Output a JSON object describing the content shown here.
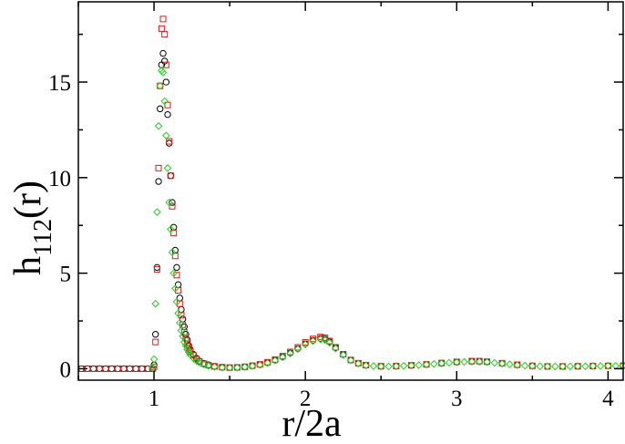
{
  "chart_data": {
    "type": "scatter",
    "xlabel": "r/2a",
    "ylabel": {
      "base": "h",
      "subscript": "112",
      "suffix": "(r)"
    },
    "xlim": [
      0.5,
      4.1
    ],
    "ylim": [
      -0.6,
      19.2
    ],
    "x_ticks": [
      1,
      2,
      3,
      4
    ],
    "y_ticks": [
      0,
      5,
      10,
      15
    ],
    "x_minor_step": 0.5,
    "y_minor_step": 2.5,
    "grid": false,
    "legend": "none",
    "series": [
      {
        "marker": "circle",
        "color": "#000000",
        "points": [
          [
            0.52,
            0
          ],
          [
            0.56,
            0
          ],
          [
            0.6,
            0
          ],
          [
            0.64,
            0
          ],
          [
            0.68,
            0
          ],
          [
            0.72,
            0
          ],
          [
            0.76,
            0
          ],
          [
            0.8,
            0
          ],
          [
            0.84,
            0
          ],
          [
            0.88,
            0
          ],
          [
            0.92,
            0
          ],
          [
            0.96,
            0
          ],
          [
            0.99,
            0
          ],
          [
            1.0,
            0.2
          ],
          [
            1.01,
            1.8
          ],
          [
            1.02,
            5.3
          ],
          [
            1.03,
            9.8
          ],
          [
            1.04,
            13.6
          ],
          [
            1.05,
            15.9
          ],
          [
            1.06,
            16.5
          ],
          [
            1.07,
            16.1
          ],
          [
            1.08,
            15.0
          ],
          [
            1.09,
            13.3
          ],
          [
            1.1,
            11.8
          ],
          [
            1.11,
            10.1
          ],
          [
            1.12,
            8.7
          ],
          [
            1.13,
            7.4
          ],
          [
            1.14,
            6.2
          ],
          [
            1.15,
            5.3
          ],
          [
            1.16,
            4.4
          ],
          [
            1.17,
            3.7
          ],
          [
            1.18,
            3.1
          ],
          [
            1.19,
            2.6
          ],
          [
            1.2,
            2.2
          ],
          [
            1.21,
            1.8
          ],
          [
            1.22,
            1.5
          ],
          [
            1.23,
            1.2
          ],
          [
            1.24,
            1.0
          ],
          [
            1.26,
            0.75
          ],
          [
            1.28,
            0.55
          ],
          [
            1.3,
            0.4
          ],
          [
            1.33,
            0.28
          ],
          [
            1.36,
            0.2
          ],
          [
            1.4,
            0.13
          ],
          [
            1.45,
            0.08
          ],
          [
            1.5,
            0.06
          ],
          [
            1.55,
            0.07
          ],
          [
            1.6,
            0.1
          ],
          [
            1.65,
            0.15
          ],
          [
            1.7,
            0.22
          ],
          [
            1.75,
            0.32
          ],
          [
            1.8,
            0.45
          ],
          [
            1.85,
            0.62
          ],
          [
            1.9,
            0.82
          ],
          [
            1.95,
            1.05
          ],
          [
            2.0,
            1.3
          ],
          [
            2.05,
            1.48
          ],
          [
            2.1,
            1.58
          ],
          [
            2.13,
            1.55
          ],
          [
            2.16,
            1.4
          ],
          [
            2.2,
            1.1
          ],
          [
            2.25,
            0.75
          ],
          [
            2.3,
            0.45
          ],
          [
            2.35,
            0.28
          ],
          [
            2.4,
            0.18
          ],
          [
            2.5,
            0.13
          ],
          [
            2.6,
            0.14
          ],
          [
            2.7,
            0.17
          ],
          [
            2.8,
            0.22
          ],
          [
            2.9,
            0.28
          ],
          [
            3.0,
            0.34
          ],
          [
            3.1,
            0.38
          ],
          [
            3.15,
            0.38
          ],
          [
            3.2,
            0.36
          ],
          [
            3.3,
            0.28
          ],
          [
            3.4,
            0.2
          ],
          [
            3.5,
            0.15
          ],
          [
            3.6,
            0.12
          ],
          [
            3.7,
            0.12
          ],
          [
            3.8,
            0.13
          ],
          [
            3.9,
            0.14
          ],
          [
            4.0,
            0.15
          ],
          [
            4.1,
            0.16
          ]
        ]
      },
      {
        "marker": "square",
        "color": "#e01b1b",
        "points": [
          [
            0.52,
            0
          ],
          [
            0.56,
            0
          ],
          [
            0.6,
            0
          ],
          [
            0.64,
            0
          ],
          [
            0.68,
            0
          ],
          [
            0.72,
            0
          ],
          [
            0.76,
            0
          ],
          [
            0.8,
            0
          ],
          [
            0.84,
            0
          ],
          [
            0.88,
            0
          ],
          [
            0.92,
            0
          ],
          [
            0.96,
            0
          ],
          [
            0.99,
            0
          ],
          [
            1.0,
            0.1
          ],
          [
            1.01,
            1.4
          ],
          [
            1.02,
            5.2
          ],
          [
            1.03,
            10.5
          ],
          [
            1.04,
            14.8
          ],
          [
            1.05,
            17.8
          ],
          [
            1.06,
            18.3
          ],
          [
            1.07,
            17.5
          ],
          [
            1.08,
            15.9
          ],
          [
            1.09,
            13.8
          ],
          [
            1.1,
            11.9
          ],
          [
            1.11,
            10.1
          ],
          [
            1.12,
            8.5
          ],
          [
            1.13,
            7.1
          ],
          [
            1.14,
            5.9
          ],
          [
            1.15,
            4.9
          ],
          [
            1.16,
            4.1
          ],
          [
            1.17,
            3.4
          ],
          [
            1.18,
            2.8
          ],
          [
            1.19,
            2.3
          ],
          [
            1.2,
            1.9
          ],
          [
            1.21,
            1.6
          ],
          [
            1.22,
            1.3
          ],
          [
            1.23,
            1.1
          ],
          [
            1.24,
            0.9
          ],
          [
            1.26,
            0.7
          ],
          [
            1.28,
            0.5
          ],
          [
            1.3,
            0.38
          ],
          [
            1.33,
            0.26
          ],
          [
            1.36,
            0.18
          ],
          [
            1.4,
            0.12
          ],
          [
            1.45,
            0.08
          ],
          [
            1.5,
            0.06
          ],
          [
            1.55,
            0.07
          ],
          [
            1.6,
            0.1
          ],
          [
            1.65,
            0.16
          ],
          [
            1.7,
            0.23
          ],
          [
            1.75,
            0.34
          ],
          [
            1.8,
            0.48
          ],
          [
            1.85,
            0.66
          ],
          [
            1.9,
            0.88
          ],
          [
            1.95,
            1.12
          ],
          [
            2.0,
            1.38
          ],
          [
            2.05,
            1.56
          ],
          [
            2.1,
            1.66
          ],
          [
            2.13,
            1.62
          ],
          [
            2.16,
            1.45
          ],
          [
            2.2,
            1.12
          ],
          [
            2.25,
            0.76
          ],
          [
            2.3,
            0.46
          ],
          [
            2.35,
            0.29
          ],
          [
            2.4,
            0.19
          ],
          [
            2.5,
            0.13
          ],
          [
            2.6,
            0.14
          ],
          [
            2.7,
            0.18
          ],
          [
            2.8,
            0.23
          ],
          [
            2.9,
            0.3
          ],
          [
            3.0,
            0.36
          ],
          [
            3.1,
            0.4
          ],
          [
            3.15,
            0.4
          ],
          [
            3.2,
            0.37
          ],
          [
            3.3,
            0.29
          ],
          [
            3.4,
            0.21
          ],
          [
            3.5,
            0.15
          ],
          [
            3.6,
            0.12
          ],
          [
            3.7,
            0.12
          ],
          [
            3.8,
            0.13
          ],
          [
            3.9,
            0.14
          ],
          [
            4.0,
            0.15
          ],
          [
            4.1,
            0.16
          ]
        ]
      },
      {
        "marker": "diamond",
        "color": "#22d022",
        "points": [
          [
            0.99,
            0.05
          ],
          [
            1.0,
            0.5
          ],
          [
            1.01,
            3.4
          ],
          [
            1.02,
            8.2
          ],
          [
            1.03,
            12.7
          ],
          [
            1.04,
            14.8
          ],
          [
            1.05,
            15.6
          ],
          [
            1.06,
            15.5
          ],
          [
            1.07,
            14.0
          ],
          [
            1.08,
            12.2
          ],
          [
            1.09,
            10.5
          ],
          [
            1.1,
            8.7
          ],
          [
            1.11,
            7.3
          ],
          [
            1.12,
            6.1
          ],
          [
            1.13,
            5.0
          ],
          [
            1.14,
            4.2
          ],
          [
            1.15,
            3.5
          ],
          [
            1.16,
            2.9
          ],
          [
            1.17,
            2.4
          ],
          [
            1.18,
            2.0
          ],
          [
            1.19,
            1.7
          ],
          [
            1.2,
            1.4
          ],
          [
            1.21,
            1.2
          ],
          [
            1.22,
            1.0
          ],
          [
            1.23,
            0.85
          ],
          [
            1.24,
            0.72
          ],
          [
            1.26,
            0.55
          ],
          [
            1.28,
            0.42
          ],
          [
            1.3,
            0.32
          ],
          [
            1.33,
            0.22
          ],
          [
            1.36,
            0.15
          ],
          [
            1.4,
            0.1
          ],
          [
            1.45,
            0.06
          ],
          [
            1.5,
            0.05
          ],
          [
            1.55,
            0.06
          ],
          [
            1.6,
            0.09
          ],
          [
            1.65,
            0.14
          ],
          [
            1.7,
            0.2
          ],
          [
            1.75,
            0.3
          ],
          [
            1.8,
            0.43
          ],
          [
            1.85,
            0.6
          ],
          [
            1.9,
            0.8
          ],
          [
            1.95,
            1.03
          ],
          [
            2.0,
            1.27
          ],
          [
            2.05,
            1.45
          ],
          [
            2.1,
            1.54
          ],
          [
            2.13,
            1.5
          ],
          [
            2.16,
            1.36
          ],
          [
            2.2,
            1.06
          ],
          [
            2.25,
            0.72
          ],
          [
            2.3,
            0.44
          ],
          [
            2.35,
            0.27
          ],
          [
            2.4,
            0.17
          ],
          [
            2.45,
            0.14
          ],
          [
            2.5,
            0.12
          ],
          [
            2.55,
            0.12
          ],
          [
            2.6,
            0.13
          ],
          [
            2.65,
            0.15
          ],
          [
            2.7,
            0.17
          ],
          [
            2.75,
            0.19
          ],
          [
            2.8,
            0.22
          ],
          [
            2.85,
            0.25
          ],
          [
            2.9,
            0.28
          ],
          [
            2.95,
            0.31
          ],
          [
            3.0,
            0.34
          ],
          [
            3.05,
            0.36
          ],
          [
            3.1,
            0.37
          ],
          [
            3.15,
            0.37
          ],
          [
            3.2,
            0.35
          ],
          [
            3.25,
            0.31
          ],
          [
            3.3,
            0.27
          ],
          [
            3.35,
            0.23
          ],
          [
            3.4,
            0.19
          ],
          [
            3.45,
            0.16
          ],
          [
            3.5,
            0.14
          ],
          [
            3.55,
            0.13
          ],
          [
            3.6,
            0.12
          ],
          [
            3.65,
            0.12
          ],
          [
            3.7,
            0.12
          ],
          [
            3.75,
            0.12
          ],
          [
            3.8,
            0.13
          ],
          [
            3.85,
            0.13
          ],
          [
            3.9,
            0.14
          ],
          [
            3.95,
            0.14
          ],
          [
            4.0,
            0.15
          ],
          [
            4.05,
            0.15
          ],
          [
            4.1,
            0.16
          ]
        ]
      }
    ]
  }
}
